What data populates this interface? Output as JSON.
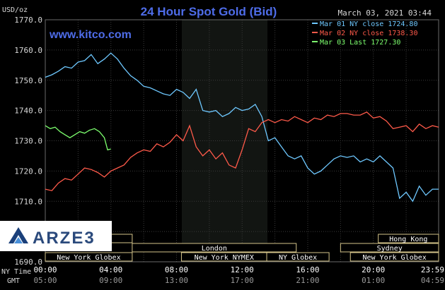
{
  "chart_data": {
    "type": "line",
    "title": "24 Hour Spot Gold (Bid)",
    "ylabel": "USD/oz",
    "date_text": "March 03, 2021 03:44",
    "watermark": "www.kitco.com",
    "ylim": [
      1690,
      1770
    ],
    "y_ticks": [
      "1770.0",
      "1760.0",
      "1750.0",
      "1740.0",
      "1730.0",
      "1720.0",
      "1710.0",
      "1700.0",
      "1690.0"
    ],
    "x_ticks": [
      "00:00",
      "04:00",
      "08:00",
      "12:00",
      "16:00",
      "20:00",
      "23:59"
    ],
    "x_ticks_gmt": [
      "05:00",
      "09:00",
      "13:00",
      "17:00",
      "21:00",
      "01:00",
      "04:59"
    ],
    "x_row_labels": [
      "NY Time",
      "GMT"
    ],
    "grid": true,
    "legend_position": "top-right",
    "series": [
      {
        "name": "Mar 01 NY close 1724.80",
        "color": "#6ec8ff",
        "x": [
          0,
          0.4,
          0.8,
          1.2,
          1.6,
          2.0,
          2.4,
          2.8,
          3.2,
          3.6,
          4.0,
          4.4,
          4.8,
          5.2,
          5.6,
          6.0,
          6.4,
          6.8,
          7.2,
          7.6,
          8.0,
          8.4,
          8.8,
          9.2,
          9.6,
          10.0,
          10.4,
          10.8,
          11.2,
          11.6,
          12.0,
          12.4,
          12.8,
          13.2,
          13.6,
          14.0,
          14.4,
          14.8,
          15.2,
          15.6,
          16.0,
          16.4,
          16.8,
          17.2,
          17.6,
          18.0,
          18.4,
          18.8,
          19.2,
          19.6,
          20.0,
          20.4,
          20.8,
          21.2,
          21.6,
          22.0,
          22.4,
          22.8,
          23.2,
          23.6,
          23.98
        ],
        "values": [
          1751.0,
          1751.8,
          1753.0,
          1754.5,
          1754.0,
          1756.0,
          1756.5,
          1758.5,
          1755.5,
          1757.0,
          1759.0,
          1757.0,
          1754.0,
          1751.5,
          1750.0,
          1748.0,
          1747.5,
          1746.5,
          1745.5,
          1745.0,
          1747.0,
          1746.0,
          1744.0,
          1747.0,
          1740.0,
          1739.5,
          1740.0,
          1738.0,
          1739.0,
          1741.0,
          1740.0,
          1740.5,
          1742.0,
          1738.0,
          1730.0,
          1731.0,
          1728.0,
          1725.0,
          1724.0,
          1725.0,
          1721.0,
          1719.0,
          1720.0,
          1722.0,
          1724.0,
          1725.0,
          1724.5,
          1725.0,
          1723.0,
          1724.0,
          1723.0,
          1725.0,
          1723.0,
          1721.0,
          1711.0,
          1713.0,
          1710.0,
          1715.0,
          1712.0,
          1714.0,
          1714.0
        ]
      },
      {
        "name": "Mar 02 NY close 1738.30",
        "color": "#ff5a4a",
        "x": [
          0,
          0.4,
          0.8,
          1.2,
          1.6,
          2.0,
          2.4,
          2.8,
          3.2,
          3.6,
          4.0,
          4.4,
          4.8,
          5.2,
          5.6,
          6.0,
          6.4,
          6.8,
          7.2,
          7.6,
          8.0,
          8.4,
          8.8,
          9.2,
          9.6,
          10.0,
          10.4,
          10.8,
          11.2,
          11.6,
          12.0,
          12.4,
          12.8,
          13.2,
          13.6,
          14.0,
          14.4,
          14.8,
          15.2,
          15.6,
          16.0,
          16.4,
          16.8,
          17.2,
          17.6,
          18.0,
          18.4,
          18.8,
          19.2,
          19.6,
          20.0,
          20.4,
          20.8,
          21.2,
          21.6,
          22.0,
          22.4,
          22.8,
          23.2,
          23.6,
          23.98
        ],
        "values": [
          1714.0,
          1713.5,
          1716.0,
          1717.5,
          1717.0,
          1719.0,
          1721.0,
          1720.5,
          1719.5,
          1718.0,
          1720.0,
          1721.0,
          1722.0,
          1724.5,
          1726.0,
          1727.0,
          1726.5,
          1729.0,
          1728.0,
          1729.5,
          1732.0,
          1730.0,
          1735.0,
          1728.0,
          1725.0,
          1727.0,
          1724.0,
          1726.0,
          1722.0,
          1721.0,
          1727.0,
          1734.0,
          1733.0,
          1736.0,
          1737.0,
          1736.0,
          1737.0,
          1736.5,
          1738.0,
          1737.0,
          1736.0,
          1737.5,
          1737.0,
          1738.5,
          1738.0,
          1739.0,
          1739.0,
          1738.5,
          1738.5,
          1739.5,
          1737.5,
          1738.0,
          1736.5,
          1734.0,
          1734.5,
          1735.0,
          1733.0,
          1735.5,
          1734.0,
          1735.0,
          1734.5
        ]
      },
      {
        "name": "Mar 03 Last 1727.30",
        "color": "#7dff6e",
        "x": [
          0,
          0.3,
          0.6,
          0.9,
          1.2,
          1.5,
          1.8,
          2.1,
          2.4,
          2.7,
          3.0,
          3.3,
          3.6,
          3.8,
          4.0
        ],
        "values": [
          1735.0,
          1734.0,
          1734.5,
          1733.0,
          1732.0,
          1731.0,
          1732.0,
          1733.0,
          1732.5,
          1733.5,
          1734.0,
          1733.0,
          1731.0,
          1727.0,
          1727.3
        ]
      }
    ],
    "sessions": {
      "rows": [
        [
          {
            "name": "New York Globex",
            "start": 0,
            "end": 5.3
          },
          {
            "name": "New York NYMEX",
            "start": 8.3,
            "end": 13.5
          },
          {
            "name": "NY Globex",
            "start": 13.5,
            "end": 17.3
          },
          {
            "name": "New York Globex",
            "start": 18.6,
            "end": 23.98
          }
        ],
        [
          {
            "name": "London",
            "start": 5.3,
            "end": 15.3
          },
          {
            "name": "Sydney",
            "start": 18.0,
            "end": 23.98
          }
        ],
        [
          {
            "name": "",
            "start": 0,
            "end": 5.3
          },
          {
            "name": "Hong Kong",
            "start": 20.3,
            "end": 23.98
          }
        ]
      ]
    }
  },
  "brand": {
    "logo_text": "ARZE3"
  }
}
